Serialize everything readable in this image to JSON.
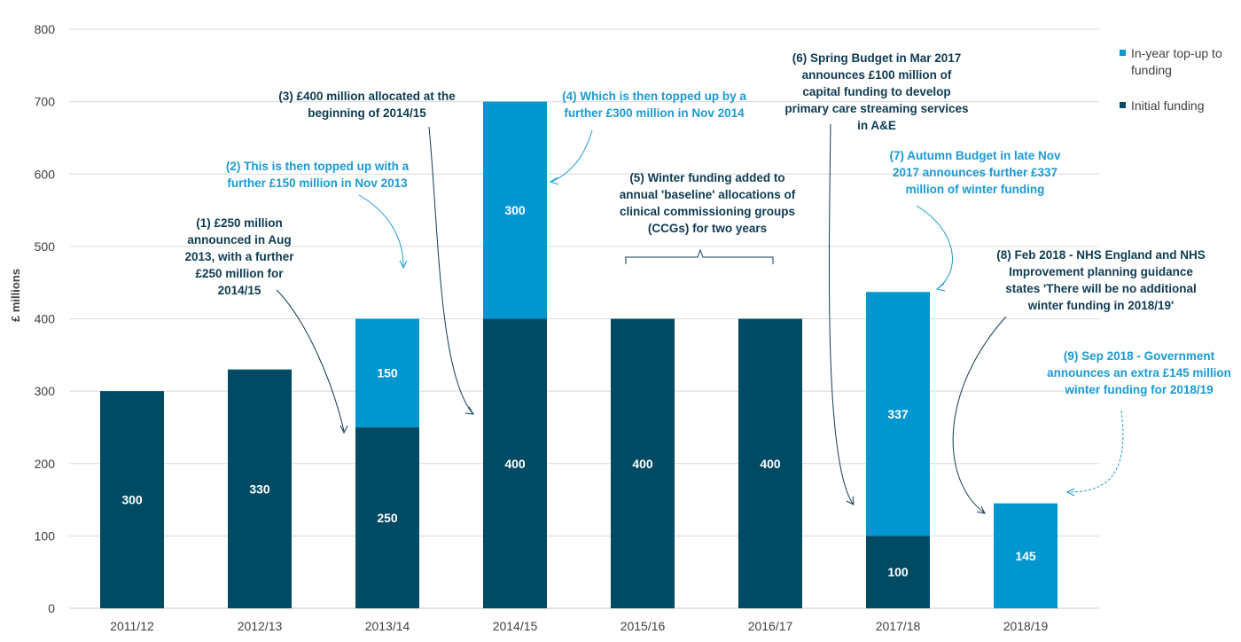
{
  "chart_data": {
    "type": "bar",
    "stacked": true,
    "title": "",
    "xlabel": "",
    "ylabel": "£ millions",
    "ylim": [
      0,
      800
    ],
    "yticks": [
      0,
      100,
      200,
      300,
      400,
      500,
      600,
      700,
      800
    ],
    "grid": true,
    "legend_position": "right",
    "categories": [
      "2011/12",
      "2012/13",
      "2013/14",
      "2014/15",
      "2015/16",
      "2016/17",
      "2017/18",
      "2018/19"
    ],
    "series": [
      {
        "name": "Initial funding",
        "color": "#004a63",
        "values": [
          300,
          330,
          250,
          400,
          400,
          400,
          100,
          0
        ]
      },
      {
        "name": "In-year top-up to funding",
        "color": "#0096cf",
        "values": [
          0,
          0,
          150,
          300,
          0,
          0,
          337,
          145
        ]
      }
    ],
    "legend": [
      {
        "lines": [
          "In-year top-up to",
          "funding"
        ],
        "color": "#0096cf"
      },
      {
        "lines": [
          "Initial funding"
        ],
        "color": "#004a63"
      }
    ],
    "annotations": [
      {
        "id": "ann1",
        "tone": "dark",
        "lines": [
          "(1) £250 million",
          "announced in Aug",
          "2013, with a further",
          "£250 million for",
          "2014/15"
        ]
      },
      {
        "id": "ann2",
        "tone": "light",
        "lines": [
          "(2) This is then topped up with a",
          "further £150 million in Nov 2013"
        ]
      },
      {
        "id": "ann3",
        "tone": "dark",
        "lines": [
          "(3) £400 million allocated at the",
          "beginning of 2014/15"
        ]
      },
      {
        "id": "ann4",
        "tone": "light",
        "lines": [
          "(4) Which is then topped up by a",
          "further £300 million in Nov 2014"
        ]
      },
      {
        "id": "ann5",
        "tone": "dark",
        "lines": [
          "(5) Winter funding added to",
          "annual 'baseline' allocations of",
          "clinical commissioning groups",
          "(CCGs) for two years"
        ]
      },
      {
        "id": "ann6",
        "tone": "dark",
        "lines": [
          "(6) Spring Budget in Mar 2017",
          "announces £100 million of",
          "capital funding to develop",
          "primary care streaming services",
          "in A&E"
        ]
      },
      {
        "id": "ann7",
        "tone": "light",
        "lines": [
          "(7) Autumn Budget in late Nov",
          "2017 announces further £337",
          "million of winter funding"
        ]
      },
      {
        "id": "ann8",
        "tone": "dark",
        "lines": [
          "(8) Feb 2018 - NHS England and NHS",
          "Improvement planning guidance",
          "states 'There will be no additional",
          "winter funding in 2018/19'"
        ]
      },
      {
        "id": "ann9",
        "tone": "light",
        "lines": [
          "(9) Sep 2018 - Government",
          "announces an extra £145 million",
          "winter funding for 2018/19"
        ]
      }
    ]
  }
}
